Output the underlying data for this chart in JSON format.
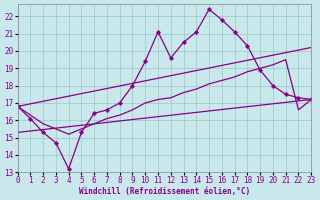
{
  "xlabel": "Windchill (Refroidissement éolien,°C)",
  "bg_color": "#c8e8ec",
  "line_color": "#880088",
  "grid_color": "#9ec8c8",
  "xlim": [
    0,
    23
  ],
  "ylim": [
    13,
    22.7
  ],
  "yticks": [
    13,
    14,
    15,
    16,
    17,
    18,
    19,
    20,
    21,
    22
  ],
  "xticks": [
    0,
    1,
    2,
    3,
    4,
    5,
    6,
    7,
    8,
    9,
    10,
    11,
    12,
    13,
    14,
    15,
    16,
    17,
    18,
    19,
    20,
    21,
    22,
    23
  ],
  "jagged_x": [
    0,
    1,
    2,
    3,
    4,
    5,
    6,
    7,
    8,
    9,
    10,
    11,
    12,
    13,
    14,
    15,
    16,
    17,
    18,
    19,
    20,
    21,
    22,
    23
  ],
  "jagged_y": [
    16.8,
    16.1,
    15.3,
    14.7,
    13.2,
    15.3,
    16.4,
    16.6,
    17.0,
    18.0,
    19.4,
    21.1,
    19.6,
    20.5,
    21.1,
    22.4,
    21.8,
    21.1,
    20.3,
    18.9,
    18.0,
    17.5,
    17.3,
    17.2
  ],
  "trend1_x": [
    0,
    1,
    2,
    3,
    4,
    5,
    6,
    7,
    8,
    9,
    10,
    11,
    12,
    13,
    14,
    15,
    16,
    17,
    18,
    19,
    20,
    21,
    22,
    23
  ],
  "trend1_y": [
    16.8,
    16.3,
    15.8,
    15.5,
    15.2,
    15.5,
    15.8,
    16.1,
    16.3,
    16.6,
    17.0,
    17.2,
    17.3,
    17.6,
    17.8,
    18.1,
    18.3,
    18.5,
    18.8,
    19.0,
    19.2,
    19.5,
    16.6,
    17.2
  ],
  "trend2_x": [
    0,
    23
  ],
  "trend2_y": [
    16.8,
    20.2
  ],
  "trend3_x": [
    0,
    23
  ],
  "trend3_y": [
    15.3,
    17.2
  ]
}
